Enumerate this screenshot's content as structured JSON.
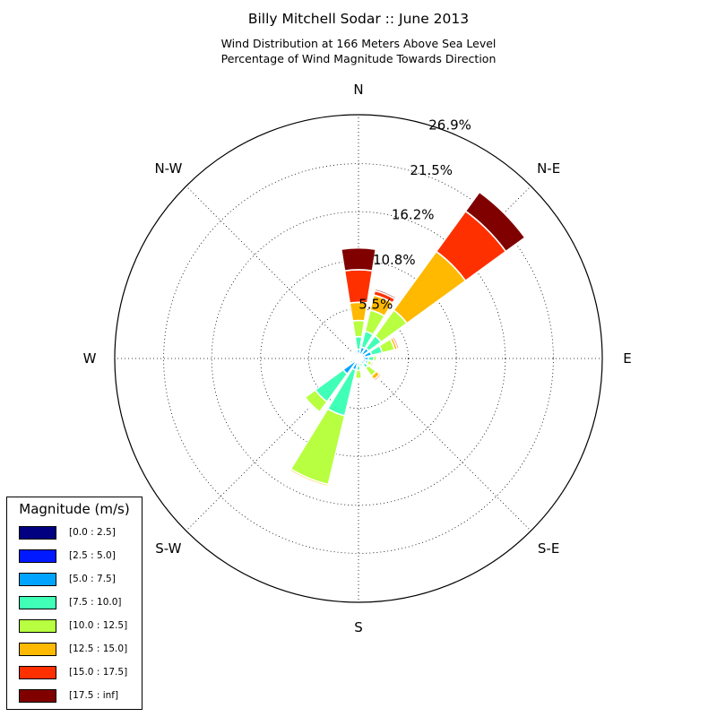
{
  "header": {
    "title": "Billy Mitchell Sodar :: June 2013",
    "subtitle_line1": "Wind Distribution at 166 Meters Above Sea Level",
    "subtitle_line2": "Percentage of Wind Magnitude Towards Direction"
  },
  "chart_data": {
    "type": "bar",
    "subtype": "polar-windrose",
    "directions": [
      "N",
      "NNE",
      "NE",
      "ENE",
      "E",
      "ESE",
      "SE",
      "SSE",
      "S",
      "SSW",
      "SW",
      "WSW",
      "W",
      "WNW",
      "NW",
      "NNW"
    ],
    "direction_labels": [
      {
        "label": "N",
        "angle_deg": 0
      },
      {
        "label": "N-E",
        "angle_deg": 45
      },
      {
        "label": "E",
        "angle_deg": 90
      },
      {
        "label": "S-E",
        "angle_deg": 135
      },
      {
        "label": "S",
        "angle_deg": 180
      },
      {
        "label": "S-W",
        "angle_deg": 225
      },
      {
        "label": "W",
        "angle_deg": 270
      },
      {
        "label": "N-W",
        "angle_deg": 315
      }
    ],
    "radial_labels": [
      "5.5%",
      "10.8%",
      "16.2%",
      "21.5%",
      "26.9%"
    ],
    "radial_values": [
      5.5,
      10.8,
      16.2,
      21.5,
      26.9
    ],
    "rmax": 26.9,
    "legend": {
      "title": "Magnitude (m/s)",
      "position": "bottom-left",
      "bins": [
        "[0.0 : 2.5]",
        "[2.5 : 5.0]",
        "[5.0 : 7.5]",
        "[7.5 : 10.0]",
        "[10.0 : 12.5]",
        "[12.5 : 15.0]",
        "[15.0 : 17.5]",
        "[17.5 : inf]"
      ],
      "colors": [
        "#000080",
        "#0019ff",
        "#00a4ff",
        "#40ffb7",
        "#b7ff40",
        "#ffb900",
        "#ff3000",
        "#800000"
      ]
    },
    "series": [
      {
        "name": "[0.0 : 2.5]",
        "values": [
          0.1,
          0.1,
          0.1,
          0.1,
          0.1,
          0.1,
          0.1,
          0.1,
          0.1,
          0.1,
          0.1,
          0.1,
          0.1,
          0.1,
          0.1,
          0.1
        ]
      },
      {
        "name": "[2.5 : 5.0]",
        "values": [
          0.3,
          0.4,
          0.5,
          0.6,
          0.4,
          0.4,
          0.3,
          0.3,
          0.3,
          0.3,
          0.4,
          0.2,
          0.3,
          0.2,
          0.2,
          0.3
        ]
      },
      {
        "name": "[5.0 : 7.5]",
        "values": [
          0.6,
          0.8,
          0.8,
          0.8,
          0.6,
          0.3,
          0.4,
          0.2,
          0.4,
          0.9,
          1.6,
          0.4,
          0.2,
          0.2,
          0.2,
          0.3
        ]
      },
      {
        "name": "[7.5 : 10.0]",
        "values": [
          1.4,
          1.8,
          1.7,
          1.2,
          0.6,
          0.3,
          0.5,
          0.3,
          0.5,
          5.2,
          3.8,
          0.3,
          0.2,
          0.1,
          0.1,
          0.2
        ]
      },
      {
        "name": "[10.0 : 12.5]",
        "values": [
          1.8,
          2.4,
          3.5,
          1.4,
          0.3,
          0.4,
          1.1,
          0.2,
          0.9,
          7.8,
          1.4,
          0.1,
          0.1,
          0.1,
          0.1,
          0.1
        ]
      },
      {
        "name": "[12.5 : 15.0]",
        "values": [
          2.0,
          1.7,
          8.0,
          0.3,
          0.1,
          0.2,
          0.5,
          0.1,
          0.1,
          0.2,
          0.1,
          0.1,
          0.1,
          0.1,
          0.1,
          0.1
        ]
      },
      {
        "name": "[15.0 : 17.5]",
        "values": [
          3.6,
          0.5,
          5.5,
          0.2,
          0.1,
          0.1,
          0.2,
          0.1,
          0.1,
          0.1,
          0.1,
          0.1,
          0.1,
          0.1,
          0.1,
          0.1
        ]
      },
      {
        "name": "[17.5 : inf]",
        "values": [
          2.4,
          0.2,
          2.6,
          0.1,
          0.1,
          0.1,
          0.1,
          0.1,
          0.1,
          0.1,
          0.1,
          0.1,
          0.1,
          0.1,
          0.1,
          0.1
        ]
      }
    ],
    "grid": true
  }
}
